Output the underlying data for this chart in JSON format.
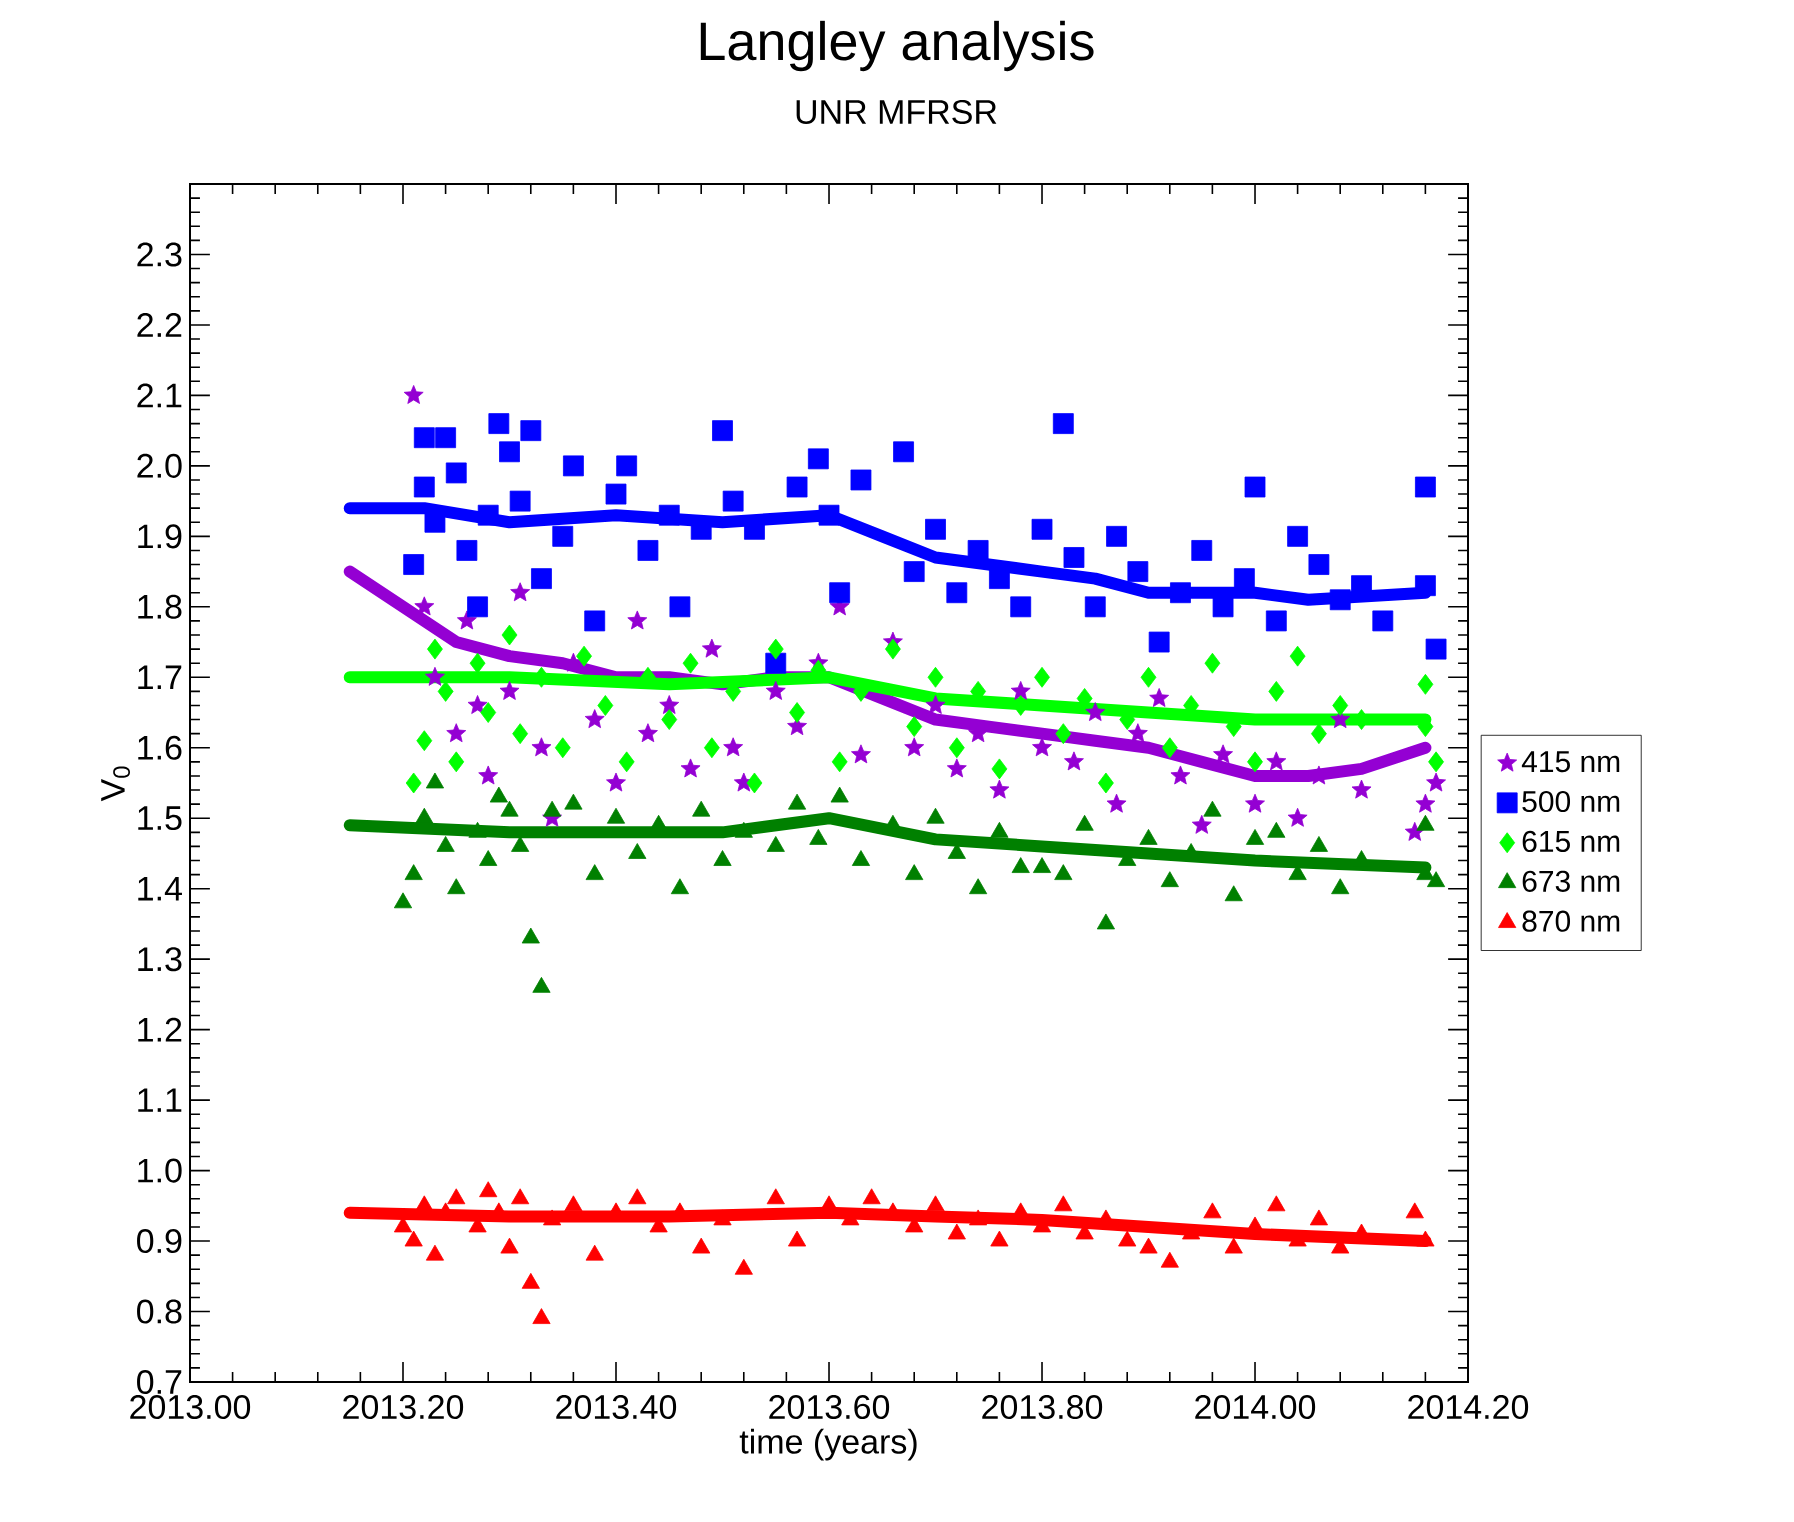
{
  "chart_data": {
    "type": "scatter",
    "title": "Langley analysis",
    "subtitle": "UNR MFRSR",
    "xlabel": "time (years)",
    "ylabel": "V$_{0}$",
    "xlim": [
      2013.0,
      2014.2
    ],
    "ylim": [
      0.7,
      2.4
    ],
    "xticks": [
      {
        "value": 2013.0,
        "label": "2013.00"
      },
      {
        "value": 2013.2,
        "label": "2013.20"
      },
      {
        "value": 2013.4,
        "label": "2013.40"
      },
      {
        "value": 2013.6,
        "label": "2013.60"
      },
      {
        "value": 2013.8,
        "label": "2013.80"
      },
      {
        "value": 2014.0,
        "label": "2014.00"
      },
      {
        "value": 2014.2,
        "label": "2014.20"
      }
    ],
    "yticks": [
      0.7,
      0.8,
      0.9,
      {
        "value": 1.0,
        "label": "1.0"
      },
      1.1,
      1.2,
      1.3,
      1.4,
      1.5,
      1.6,
      1.7,
      1.8,
      1.9,
      {
        "value": 2.0,
        "label": "2.0"
      },
      2.1,
      2.2,
      2.3,
      {
        "value": 2.4,
        "label": null
      }
    ],
    "legend": "right",
    "grid": false,
    "series": [
      {
        "name": "415 nm",
        "color": "#9400d3",
        "marker": "star",
        "x": [
          2013.21,
          2013.22,
          2013.23,
          2013.25,
          2013.26,
          2013.27,
          2013.28,
          2013.3,
          2013.31,
          2013.33,
          2013.34,
          2013.36,
          2013.38,
          2013.4,
          2013.42,
          2013.43,
          2013.45,
          2013.47,
          2013.49,
          2013.51,
          2013.52,
          2013.55,
          2013.57,
          2013.59,
          2013.61,
          2013.63,
          2013.66,
          2013.68,
          2013.7,
          2013.72,
          2013.74,
          2013.76,
          2013.78,
          2013.8,
          2013.83,
          2013.85,
          2013.87,
          2013.89,
          2013.91,
          2013.93,
          2013.95,
          2013.97,
          2014.0,
          2014.02,
          2014.04,
          2014.06,
          2014.08,
          2014.1,
          2014.15,
          2014.16,
          2014.17
        ],
        "values": [
          2.1,
          1.8,
          1.7,
          1.62,
          1.78,
          1.66,
          1.56,
          1.68,
          1.82,
          1.6,
          1.5,
          1.72,
          1.64,
          1.55,
          1.78,
          1.62,
          1.66,
          1.57,
          1.74,
          1.6,
          1.55,
          1.68,
          1.63,
          1.72,
          1.8,
          1.59,
          1.75,
          1.6,
          1.66,
          1.57,
          1.62,
          1.54,
          1.68,
          1.6,
          1.58,
          1.65,
          1.52,
          1.62,
          1.67,
          1.56,
          1.49,
          1.59,
          1.52,
          1.58,
          1.5,
          1.56,
          1.64,
          1.54,
          1.48,
          1.52,
          1.55
        ]
      },
      {
        "type": "line",
        "color": "#9400d3",
        "x": [
          2013.15,
          2013.2,
          2013.25,
          2013.3,
          2013.35,
          2013.4,
          2013.45,
          2013.5,
          2013.55,
          2013.6,
          2013.65,
          2013.7,
          2013.75,
          2013.8,
          2013.85,
          2013.9,
          2013.95,
          2014.0,
          2014.05,
          2014.1,
          2014.16
        ],
        "values": [
          1.85,
          1.8,
          1.75,
          1.73,
          1.72,
          1.7,
          1.7,
          1.69,
          1.7,
          1.7,
          1.67,
          1.64,
          1.63,
          1.62,
          1.61,
          1.6,
          1.58,
          1.56,
          1.56,
          1.57,
          1.6
        ]
      },
      {
        "name": "500 nm",
        "color": "#0000ff",
        "marker": "square",
        "x": [
          2013.21,
          2013.22,
          2013.22,
          2013.23,
          2013.24,
          2013.25,
          2013.26,
          2013.27,
          2013.28,
          2013.29,
          2013.3,
          2013.31,
          2013.32,
          2013.33,
          2013.35,
          2013.36,
          2013.38,
          2013.4,
          2013.41,
          2013.43,
          2013.45,
          2013.46,
          2013.48,
          2013.5,
          2013.51,
          2013.53,
          2013.55,
          2013.57,
          2013.59,
          2013.6,
          2013.61,
          2013.63,
          2013.67,
          2013.68,
          2013.7,
          2013.72,
          2013.74,
          2013.76,
          2013.78,
          2013.8,
          2013.82,
          2013.83,
          2013.85,
          2013.87,
          2013.89,
          2013.91,
          2013.93,
          2013.95,
          2013.97,
          2013.99,
          2014.0,
          2014.02,
          2014.04,
          2014.06,
          2014.08,
          2014.1,
          2014.12,
          2014.16,
          2014.16,
          2014.17
        ],
        "values": [
          1.86,
          1.97,
          2.04,
          1.92,
          2.04,
          1.99,
          1.88,
          1.8,
          1.93,
          2.06,
          2.02,
          1.95,
          2.05,
          1.84,
          1.9,
          2.0,
          1.78,
          1.96,
          2.0,
          1.88,
          1.93,
          1.8,
          1.91,
          2.05,
          1.95,
          1.91,
          1.72,
          1.97,
          2.01,
          1.93,
          1.82,
          1.98,
          2.02,
          1.85,
          1.91,
          1.82,
          1.88,
          1.84,
          1.8,
          1.91,
          2.06,
          1.87,
          1.8,
          1.9,
          1.85,
          1.75,
          1.82,
          1.88,
          1.8,
          1.84,
          1.97,
          1.78,
          1.9,
          1.86,
          1.81,
          1.83,
          1.78,
          1.97,
          1.83,
          1.74
        ]
      },
      {
        "type": "line",
        "color": "#0000ff",
        "x": [
          2013.15,
          2013.22,
          2013.3,
          2013.4,
          2013.5,
          2013.6,
          2013.65,
          2013.7,
          2013.8,
          2013.85,
          2013.9,
          2014.0,
          2014.05,
          2014.16
        ],
        "values": [
          1.94,
          1.94,
          1.92,
          1.93,
          1.92,
          1.93,
          1.9,
          1.87,
          1.85,
          1.84,
          1.82,
          1.82,
          1.81,
          1.82
        ]
      },
      {
        "name": "615 nm",
        "color": "#00ff00",
        "marker": "diamond",
        "x": [
          2013.21,
          2013.22,
          2013.23,
          2013.24,
          2013.25,
          2013.27,
          2013.28,
          2013.3,
          2013.31,
          2013.33,
          2013.35,
          2013.37,
          2013.39,
          2013.41,
          2013.43,
          2013.45,
          2013.47,
          2013.49,
          2013.51,
          2013.53,
          2013.55,
          2013.57,
          2013.59,
          2013.61,
          2013.63,
          2013.66,
          2013.68,
          2013.7,
          2013.72,
          2013.74,
          2013.76,
          2013.78,
          2013.8,
          2013.82,
          2013.84,
          2013.86,
          2013.88,
          2013.9,
          2013.92,
          2013.94,
          2013.96,
          2013.98,
          2014.0,
          2014.02,
          2014.04,
          2014.06,
          2014.08,
          2014.1,
          2014.16,
          2014.16,
          2014.17
        ],
        "values": [
          1.55,
          1.61,
          1.74,
          1.68,
          1.58,
          1.72,
          1.65,
          1.76,
          1.62,
          1.7,
          1.6,
          1.73,
          1.66,
          1.58,
          1.7,
          1.64,
          1.72,
          1.6,
          1.68,
          1.55,
          1.74,
          1.65,
          1.71,
          1.58,
          1.68,
          1.74,
          1.63,
          1.7,
          1.6,
          1.68,
          1.57,
          1.66,
          1.7,
          1.62,
          1.67,
          1.55,
          1.64,
          1.7,
          1.6,
          1.66,
          1.72,
          1.63,
          1.58,
          1.68,
          1.73,
          1.62,
          1.66,
          1.64,
          1.69,
          1.63,
          1.58
        ]
      },
      {
        "type": "line",
        "color": "#00ff00",
        "x": [
          2013.15,
          2013.3,
          2013.45,
          2013.6,
          2013.7,
          2013.8,
          2013.9,
          2014.0,
          2014.16
        ],
        "values": [
          1.7,
          1.7,
          1.69,
          1.7,
          1.67,
          1.66,
          1.65,
          1.64,
          1.64
        ]
      },
      {
        "name": "673 nm",
        "color": "#008000",
        "marker": "triangle",
        "x": [
          2013.2,
          2013.21,
          2013.22,
          2013.23,
          2013.24,
          2013.25,
          2013.27,
          2013.28,
          2013.29,
          2013.3,
          2013.31,
          2013.32,
          2013.33,
          2013.34,
          2013.36,
          2013.38,
          2013.4,
          2013.42,
          2013.44,
          2013.46,
          2013.48,
          2013.5,
          2013.52,
          2013.55,
          2013.57,
          2013.59,
          2013.61,
          2013.63,
          2013.66,
          2013.68,
          2013.7,
          2013.72,
          2013.74,
          2013.76,
          2013.78,
          2013.8,
          2013.82,
          2013.84,
          2013.86,
          2013.88,
          2013.9,
          2013.92,
          2013.94,
          2013.96,
          2013.98,
          2014.0,
          2014.02,
          2014.04,
          2014.06,
          2014.08,
          2014.1,
          2014.16,
          2014.16,
          2014.17
        ],
        "values": [
          1.38,
          1.42,
          1.5,
          1.55,
          1.46,
          1.4,
          1.48,
          1.44,
          1.53,
          1.51,
          1.46,
          1.33,
          1.26,
          1.51,
          1.52,
          1.42,
          1.5,
          1.45,
          1.49,
          1.4,
          1.51,
          1.44,
          1.48,
          1.46,
          1.52,
          1.47,
          1.53,
          1.44,
          1.49,
          1.42,
          1.5,
          1.45,
          1.4,
          1.48,
          1.43,
          1.43,
          1.42,
          1.49,
          1.35,
          1.44,
          1.47,
          1.41,
          1.45,
          1.51,
          1.39,
          1.47,
          1.48,
          1.42,
          1.46,
          1.4,
          1.44,
          1.49,
          1.42,
          1.41
        ]
      },
      {
        "type": "line",
        "color": "#008000",
        "x": [
          2013.15,
          2013.3,
          2013.5,
          2013.6,
          2013.7,
          2013.8,
          2013.9,
          2014.0,
          2014.16
        ],
        "values": [
          1.49,
          1.48,
          1.48,
          1.5,
          1.47,
          1.46,
          1.45,
          1.44,
          1.43
        ]
      },
      {
        "name": "870 nm",
        "color": "#ff0000",
        "marker": "triangle",
        "x": [
          2013.2,
          2013.21,
          2013.22,
          2013.23,
          2013.24,
          2013.25,
          2013.27,
          2013.28,
          2013.29,
          2013.3,
          2013.31,
          2013.32,
          2013.33,
          2013.34,
          2013.36,
          2013.38,
          2013.4,
          2013.42,
          2013.44,
          2013.46,
          2013.48,
          2013.5,
          2013.52,
          2013.55,
          2013.57,
          2013.6,
          2013.62,
          2013.64,
          2013.66,
          2013.68,
          2013.7,
          2013.72,
          2013.74,
          2013.76,
          2013.78,
          2013.8,
          2013.82,
          2013.84,
          2013.86,
          2013.88,
          2013.9,
          2013.92,
          2013.94,
          2013.96,
          2013.98,
          2014.0,
          2014.02,
          2014.04,
          2014.06,
          2014.08,
          2014.1,
          2014.15,
          2014.16
        ],
        "values": [
          0.92,
          0.9,
          0.95,
          0.88,
          0.94,
          0.96,
          0.92,
          0.97,
          0.94,
          0.89,
          0.96,
          0.84,
          0.79,
          0.93,
          0.95,
          0.88,
          0.94,
          0.96,
          0.92,
          0.94,
          0.89,
          0.93,
          0.86,
          0.96,
          0.9,
          0.95,
          0.93,
          0.96,
          0.94,
          0.92,
          0.95,
          0.91,
          0.93,
          0.9,
          0.94,
          0.92,
          0.95,
          0.91,
          0.93,
          0.9,
          0.89,
          0.87,
          0.91,
          0.94,
          0.89,
          0.92,
          0.95,
          0.9,
          0.93,
          0.89,
          0.91,
          0.94,
          0.9
        ]
      },
      {
        "type": "line",
        "color": "#ff0000",
        "x": [
          2013.15,
          2013.3,
          2013.45,
          2013.6,
          2013.7,
          2013.8,
          2013.9,
          2014.0,
          2014.16
        ],
        "values": [
          0.94,
          0.935,
          0.935,
          0.94,
          0.935,
          0.93,
          0.92,
          0.91,
          0.9
        ]
      }
    ]
  }
}
